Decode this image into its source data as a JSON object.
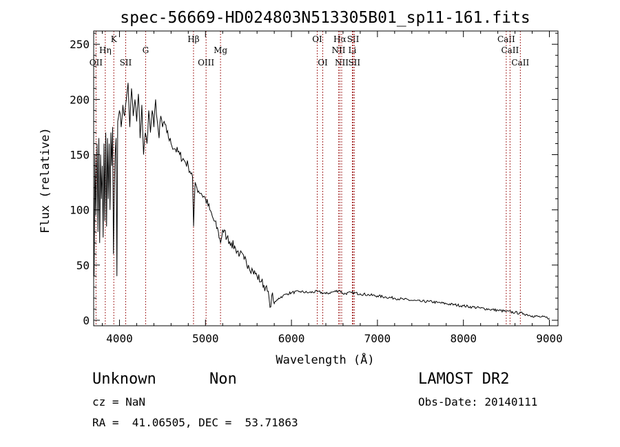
{
  "chart_data": {
    "type": "line",
    "title": "spec-56669-HD024803N513305B01_sp11-161.fits",
    "xlabel": "Wavelength (Å)",
    "ylabel": "Flux (relative)",
    "xlim": [
      3700,
      9100
    ],
    "ylim": [
      -5,
      262
    ],
    "xticks": [
      4000,
      5000,
      6000,
      7000,
      8000,
      9000
    ],
    "yticks": [
      0,
      50,
      100,
      150,
      200,
      250
    ],
    "grid": false,
    "series": [
      {
        "color": "#000000",
        "x": [
          3700,
          3705,
          3715,
          3725,
          3740,
          3750,
          3760,
          3770,
          3780,
          3790,
          3800,
          3810,
          3820,
          3830,
          3840,
          3850,
          3860,
          3870,
          3880,
          3890,
          3900,
          3910,
          3920,
          3930,
          3940,
          3950,
          3960,
          3970,
          3980,
          3990,
          4000,
          4020,
          4040,
          4060,
          4080,
          4100,
          4120,
          4140,
          4160,
          4180,
          4200,
          4220,
          4240,
          4260,
          4280,
          4300,
          4320,
          4340,
          4360,
          4380,
          4400,
          4420,
          4440,
          4460,
          4480,
          4500,
          4520,
          4550,
          4600,
          4650,
          4700,
          4750,
          4800,
          4850,
          4862,
          4880,
          4900,
          4950,
          5000,
          5050,
          5100,
          5150,
          5175,
          5200,
          5250,
          5300,
          5350,
          5400,
          5450,
          5500,
          5550,
          5600,
          5650,
          5700,
          5740,
          5760,
          5780,
          5800,
          5850,
          5900,
          5950,
          6000,
          6100,
          6200,
          6300,
          6400,
          6500,
          6563,
          6600,
          6700,
          6800,
          6900,
          7000,
          7100,
          7200,
          7300,
          7400,
          7500,
          7600,
          7700,
          7800,
          7900,
          8000,
          8100,
          8200,
          8300,
          8400,
          8500,
          8600,
          8700,
          8800,
          8900,
          9000
        ],
        "y": [
          130,
          40,
          150,
          95,
          160,
          80,
          165,
          70,
          150,
          110,
          140,
          75,
          160,
          90,
          170,
          85,
          165,
          110,
          160,
          100,
          170,
          140,
          175,
          60,
          120,
          150,
          165,
          40,
          180,
          185,
          190,
          175,
          195,
          185,
          200,
          215,
          175,
          210,
          185,
          200,
          180,
          205,
          165,
          195,
          150,
          170,
          160,
          190,
          170,
          190,
          175,
          200,
          180,
          165,
          185,
          175,
          180,
          170,
          160,
          155,
          150,
          145,
          140,
          130,
          85,
          125,
          120,
          115,
          110,
          100,
          90,
          80,
          70,
          82,
          75,
          70,
          65,
          60,
          55,
          50,
          45,
          40,
          35,
          30,
          20,
          12,
          25,
          15,
          20,
          22,
          24,
          25,
          26,
          25,
          26,
          24,
          26,
          27,
          24,
          25,
          24,
          23,
          22,
          21,
          20,
          19,
          18,
          17,
          17,
          16,
          15,
          14,
          13,
          12,
          11,
          10,
          9,
          8,
          7,
          6,
          4,
          3,
          2
        ]
      }
    ],
    "lines": [
      {
        "label": "OII",
        "x": 3727,
        "row": 2
      },
      {
        "label": "Hη",
        "x": 3835,
        "row": 1
      },
      {
        "label": "K",
        "x": 3934,
        "row": 0
      },
      {
        "label": "SII",
        "x": 4072,
        "row": 2
      },
      {
        "label": "G",
        "x": 4304,
        "row": 1
      },
      {
        "label": "Hβ",
        "x": 4861,
        "row": 0
      },
      {
        "label": "OIII",
        "x": 5007,
        "row": 2
      },
      {
        "label": "Mg",
        "x": 5175,
        "row": 1
      },
      {
        "label": "OI",
        "x": 6300,
        "row": 0
      },
      {
        "label": "OI",
        "x": 6364,
        "row": 2
      },
      {
        "label": "Hα",
        "x": 6563,
        "row": 0
      },
      {
        "label": "NII",
        "x": 6548,
        "row": 1
      },
      {
        "label": "NII",
        "x": 6584,
        "row": 2
      },
      {
        "label": "SII",
        "x": 6717,
        "row": 0
      },
      {
        "label": "Li",
        "x": 6708,
        "row": 1
      },
      {
        "label": "SII",
        "x": 6731,
        "row": 2
      },
      {
        "label": "CaII",
        "x": 8498,
        "row": 0
      },
      {
        "label": "CaII",
        "x": 8542,
        "row": 1
      },
      {
        "label": "CaII",
        "x": 8662,
        "row": 2
      }
    ]
  },
  "info": {
    "object_class": "Unknown",
    "subclass": "Non",
    "survey": "LAMOST DR2",
    "cz": "cz = NaN",
    "obs_date": "Obs-Date: 20140111",
    "coords": "RA =  41.06505, DEC =  53.71863"
  }
}
